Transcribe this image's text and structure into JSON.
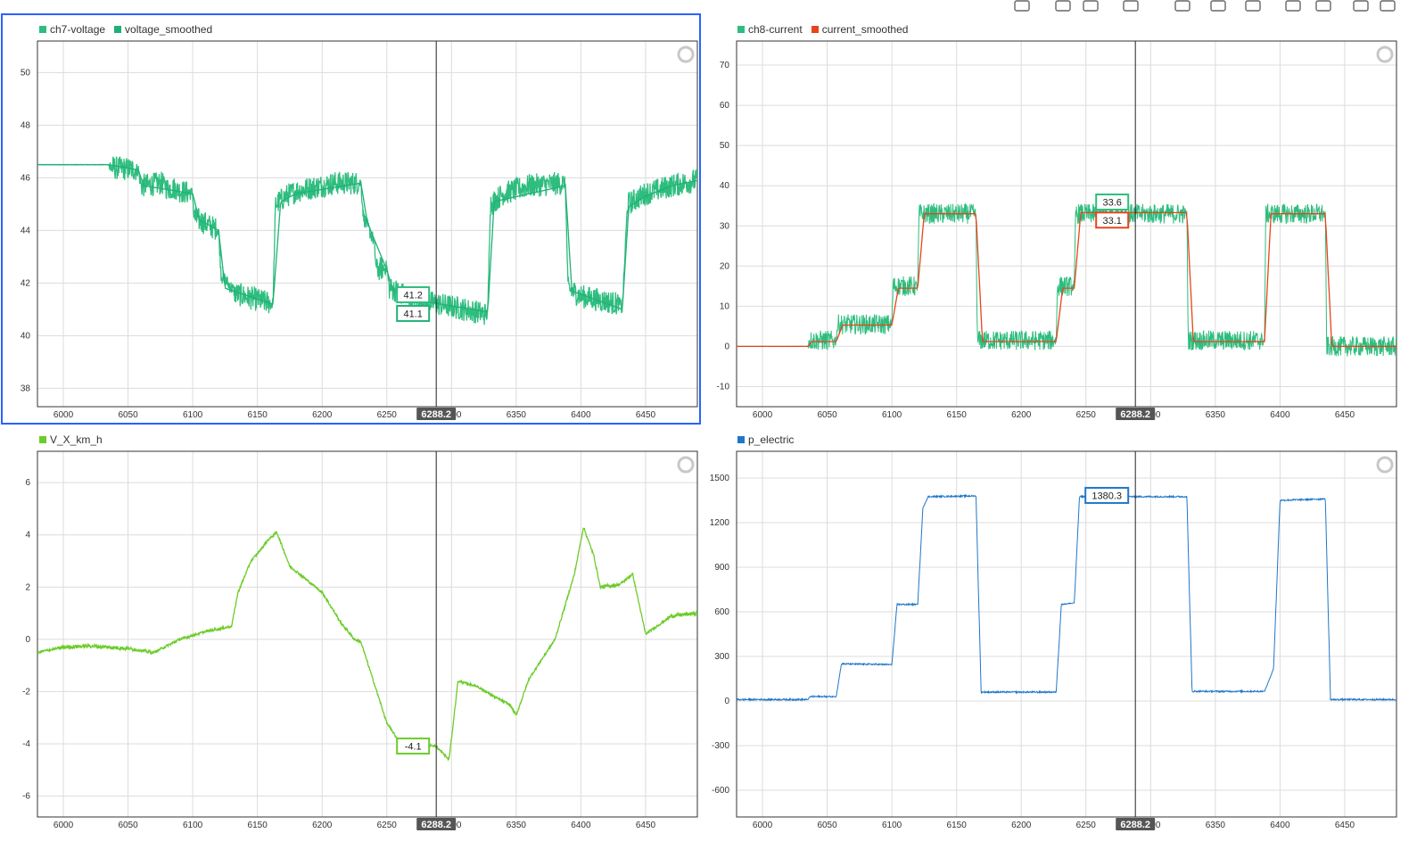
{
  "toolbar": {
    "icons": [
      "play-icon",
      "grid-icon",
      "layout-icon",
      "chart-icon",
      "zoom-icon",
      "box-select-icon",
      "pointer-icon",
      "expand-icon",
      "fullscreen-icon",
      "camera-icon",
      "gear-icon"
    ]
  },
  "cursor": {
    "x": 6288.2,
    "label": "6288.2"
  },
  "colors": {
    "ch7": "#2ebd7e",
    "smooth7": "#1fb077",
    "ch8": "#2ebd7e",
    "smooth8": "#e8441a",
    "vx": "#6ccc2a",
    "p": "#1f77c9",
    "grid": "#dcdcdc",
    "axis": "#333333",
    "selection": "#2962ff"
  },
  "chart_data": [
    {
      "type": "line",
      "legend": [
        {
          "name": "ch7-voltage",
          "color": "#2ebd7e"
        },
        {
          "name": "voltage_smoothed",
          "color": "#1fb077"
        }
      ],
      "xlim": [
        5980,
        6490
      ],
      "ylim": [
        37.3,
        51.2
      ],
      "xticks": [
        6000,
        6050,
        6100,
        6150,
        6200,
        6250,
        6300,
        6350,
        6400,
        6450
      ],
      "yticks": [
        38,
        40,
        42,
        44,
        46,
        48,
        50
      ],
      "cursor_values": [
        "41.2",
        "41.1"
      ],
      "series": [
        {
          "name": "ch7-voltage",
          "noise": 0.9,
          "x": [
            5980,
            6035,
            6036,
            6058,
            6060,
            6078,
            6080,
            6088,
            6090,
            6100,
            6101,
            6120,
            6122,
            6132,
            6133,
            6162,
            6164,
            6172,
            6180,
            6210,
            6230,
            6232,
            6240,
            6242,
            6250,
            6252,
            6258,
            6261,
            6280,
            6290,
            6300,
            6320,
            6328,
            6330,
            6340,
            6360,
            6388,
            6390,
            6400,
            6430,
            6432,
            6436,
            6450,
            6470,
            6490
          ],
          "y": [
            46.5,
            46.5,
            46.4,
            46.3,
            45.7,
            45.8,
            45.6,
            45.6,
            45.5,
            45.4,
            44.5,
            44.0,
            42.3,
            41.7,
            41.6,
            41.2,
            45.0,
            45.3,
            45.5,
            45.8,
            45.8,
            44.5,
            43.6,
            42.5,
            42.6,
            41.8,
            41.7,
            41.6,
            41.3,
            41.2,
            41.1,
            40.9,
            40.8,
            45.0,
            45.4,
            45.7,
            45.8,
            41.8,
            41.5,
            41.2,
            41.0,
            45.0,
            45.4,
            45.7,
            45.9
          ]
        },
        {
          "name": "voltage_smoothed",
          "x": [
            5980,
            6035,
            6058,
            6062,
            6100,
            6105,
            6120,
            6125,
            6162,
            6168,
            6180,
            6230,
            6235,
            6250,
            6255,
            6280,
            6328,
            6333,
            6388,
            6393,
            6432,
            6437,
            6450,
            6470,
            6490
          ],
          "y": [
            46.5,
            46.5,
            46.3,
            45.7,
            45.4,
            44.4,
            44.0,
            41.8,
            41.2,
            45.1,
            45.4,
            45.8,
            44.3,
            42.5,
            41.7,
            41.3,
            40.9,
            45.1,
            45.7,
            41.7,
            41.0,
            44.9,
            45.3,
            45.7,
            45.9
          ]
        }
      ]
    },
    {
      "type": "line",
      "legend": [
        {
          "name": "ch8-current",
          "color": "#2ebd7e"
        },
        {
          "name": "current_smoothed",
          "color": "#e8441a"
        }
      ],
      "xlim": [
        5980,
        6490
      ],
      "ylim": [
        -15,
        76
      ],
      "xticks": [
        6000,
        6050,
        6100,
        6150,
        6200,
        6250,
        6300,
        6350,
        6400,
        6450
      ],
      "yticks": [
        -10,
        0,
        10,
        20,
        30,
        40,
        50,
        60,
        70
      ],
      "cursor_values": [
        "33.6",
        "33.1"
      ],
      "series": [
        {
          "name": "ch8-current",
          "noise": 5,
          "x": [
            5980,
            6035,
            6036,
            6057,
            6058,
            6100,
            6101,
            6120,
            6121,
            6165,
            6166,
            6227,
            6228,
            6241,
            6242,
            6328,
            6329,
            6388,
            6389,
            6435,
            6436,
            6490
          ],
          "y": [
            0,
            0,
            1.5,
            1.5,
            5.5,
            5.5,
            15,
            15,
            33,
            33,
            1.5,
            1.5,
            15,
            15,
            33,
            33,
            1.5,
            1.5,
            33,
            33,
            0,
            0
          ]
        },
        {
          "name": "current_smoothed",
          "x": [
            5980,
            6035,
            6038,
            6057,
            6062,
            6100,
            6105,
            6120,
            6125,
            6165,
            6170,
            6227,
            6232,
            6241,
            6246,
            6328,
            6333,
            6388,
            6393,
            6435,
            6440,
            6490
          ],
          "y": [
            0,
            0,
            1.2,
            1.2,
            5.3,
            5.3,
            14.5,
            14.5,
            33,
            33,
            1.2,
            1.2,
            14.5,
            14.5,
            33.3,
            33.3,
            1.2,
            1.2,
            33,
            33,
            0,
            0
          ]
        }
      ]
    },
    {
      "type": "line",
      "legend": [
        {
          "name": "V_X_km_h",
          "color": "#6ccc2a"
        }
      ],
      "xlim": [
        5980,
        6490
      ],
      "ylim": [
        -6.8,
        7.2
      ],
      "xticks": [
        6000,
        6050,
        6100,
        6150,
        6200,
        6250,
        6300,
        6350,
        6400,
        6450
      ],
      "yticks": [
        -6,
        -4,
        -2,
        0,
        2,
        4,
        6
      ],
      "cursor_values": [
        "-4.1"
      ],
      "series": [
        {
          "name": "V_X_km_h",
          "noise": 0.15,
          "x": [
            5980,
            6000,
            6020,
            6050,
            6070,
            6090,
            6110,
            6130,
            6135,
            6145,
            6152,
            6158,
            6165,
            6175,
            6200,
            6215,
            6225,
            6230,
            6250,
            6262,
            6275,
            6288,
            6298,
            6300,
            6305,
            6320,
            6333,
            6345,
            6350,
            6360,
            6380,
            6395,
            6402,
            6410,
            6415,
            6430,
            6440,
            6450,
            6470,
            6490
          ],
          "y": [
            -0.5,
            -0.3,
            -0.25,
            -0.35,
            -0.5,
            0.0,
            0.3,
            0.5,
            1.8,
            3.0,
            3.4,
            3.8,
            4.1,
            2.8,
            1.8,
            0.6,
            0.0,
            -0.1,
            -3.2,
            -4.1,
            -3.9,
            -4.1,
            -4.6,
            -3.8,
            -1.6,
            -1.8,
            -2.2,
            -2.5,
            -2.9,
            -1.5,
            0.0,
            2.5,
            4.3,
            3.2,
            2.0,
            2.1,
            2.5,
            0.2,
            0.9,
            1.0
          ]
        }
      ]
    },
    {
      "type": "line",
      "legend": [
        {
          "name": "p_electric",
          "color": "#1f77c9"
        }
      ],
      "xlim": [
        5980,
        6490
      ],
      "ylim": [
        -780,
        1680
      ],
      "xticks": [
        6000,
        6050,
        6100,
        6150,
        6200,
        6250,
        6300,
        6350,
        6400,
        6450
      ],
      "yticks": [
        -600,
        -300,
        0,
        300,
        600,
        900,
        1200,
        1500
      ],
      "cursor_values": [
        "1380.3"
      ],
      "series": [
        {
          "name": "p_electric",
          "noise": 10,
          "x": [
            5980,
            6035,
            6037,
            6057,
            6061,
            6100,
            6104,
            6120,
            6124,
            6128,
            6165,
            6169,
            6227,
            6231,
            6241,
            6245,
            6328,
            6332,
            6388,
            6392,
            6395,
            6400,
            6435,
            6439,
            6490
          ],
          "y": [
            10,
            10,
            30,
            30,
            250,
            245,
            650,
            650,
            1300,
            1375,
            1380,
            60,
            60,
            650,
            660,
            1375,
            1375,
            65,
            65,
            150,
            220,
            1350,
            1360,
            10,
            10
          ]
        }
      ]
    }
  ]
}
